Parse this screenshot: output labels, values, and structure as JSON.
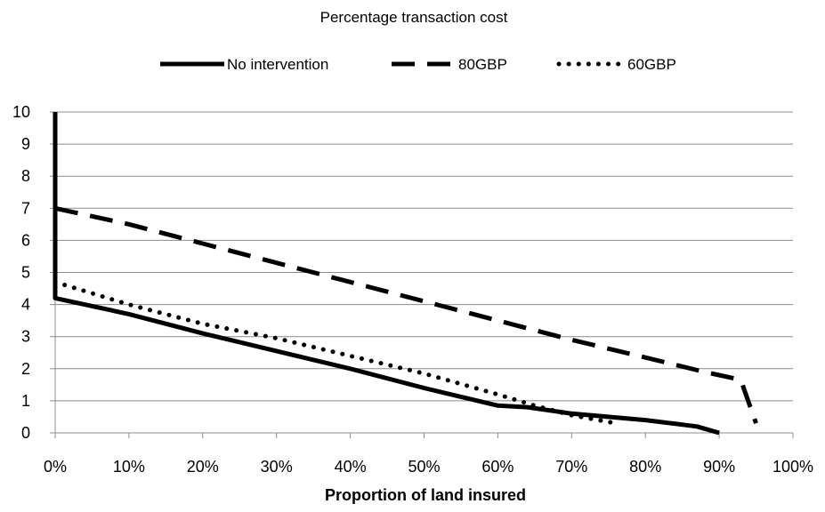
{
  "chart_data": {
    "type": "line",
    "title": "Percentage transaction cost",
    "xlabel": "Proportion of land insured",
    "ylabel": "",
    "xlim": [
      0,
      100
    ],
    "ylim": [
      0,
      10
    ],
    "x_ticks": [
      0,
      10,
      20,
      30,
      40,
      50,
      60,
      70,
      80,
      90,
      100
    ],
    "x_tick_labels": [
      "0%",
      "10%",
      "20%",
      "30%",
      "40%",
      "50%",
      "60%",
      "70%",
      "80%",
      "90%",
      "100%"
    ],
    "y_ticks": [
      0,
      1,
      2,
      3,
      4,
      5,
      6,
      7,
      8,
      9,
      10
    ],
    "y_tick_labels": [
      "0",
      "1",
      "2",
      "3",
      "4",
      "5",
      "6",
      "7",
      "8",
      "9",
      "10"
    ],
    "grid": true,
    "legend_position": "top",
    "series": [
      {
        "name": "No intervention",
        "style": "solid",
        "color": "#000000",
        "x": [
          0,
          0,
          10,
          20,
          30,
          40,
          50,
          60,
          64,
          70,
          80,
          87,
          90
        ],
        "y": [
          10,
          4.2,
          3.7,
          3.1,
          2.55,
          2.0,
          1.4,
          0.85,
          0.8,
          0.6,
          0.4,
          0.2,
          0.0
        ]
      },
      {
        "name": "80GBP",
        "style": "dashed",
        "color": "#000000",
        "x": [
          0,
          10,
          20,
          30,
          40,
          50,
          60,
          70,
          80,
          88,
          92,
          93,
          95
        ],
        "y": [
          7.0,
          6.5,
          5.9,
          5.3,
          4.7,
          4.1,
          3.5,
          2.9,
          2.35,
          1.9,
          1.7,
          1.6,
          0.3
        ]
      },
      {
        "name": "60GBP",
        "style": "dotted",
        "color": "#000000",
        "x": [
          0,
          10,
          20,
          30,
          40,
          50,
          60,
          65,
          70,
          76
        ],
        "y": [
          4.7,
          4.0,
          3.4,
          2.95,
          2.4,
          1.85,
          1.2,
          0.85,
          0.55,
          0.3
        ]
      }
    ]
  }
}
